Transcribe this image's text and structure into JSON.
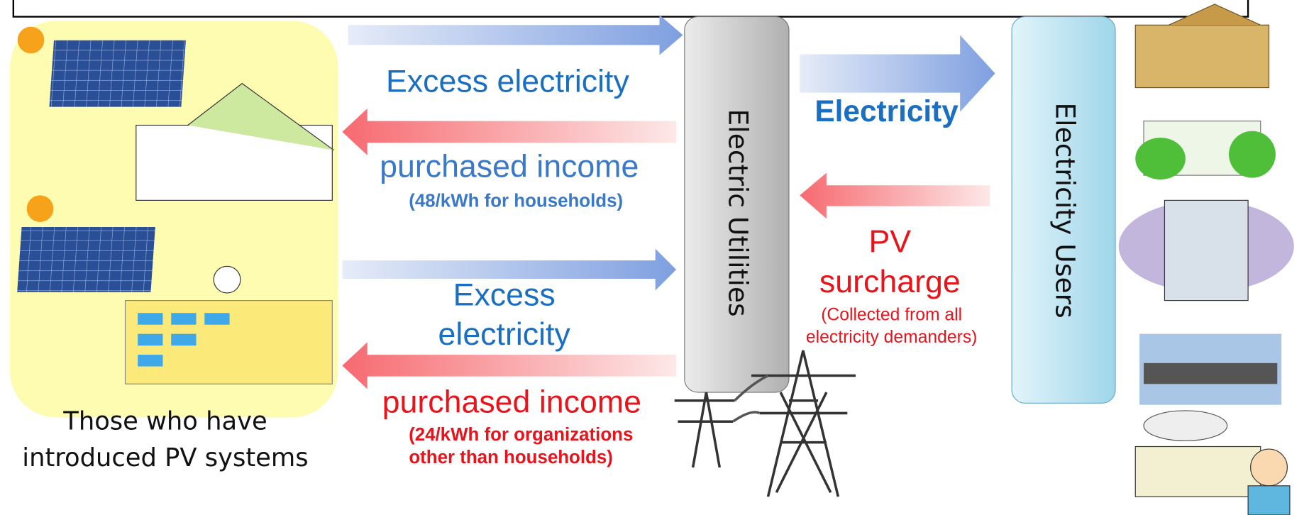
{
  "pv_owners": {
    "label_lines": [
      "Those who have",
      "introduced PV systems"
    ]
  },
  "utilities": {
    "label": "Electric Utilities"
  },
  "users": {
    "label": "Electricity Users"
  },
  "household_flow": {
    "excess": "Excess electricity",
    "income": "purchased income",
    "rate": "(48/kWh for households)"
  },
  "organization_flow": {
    "excess_lines": [
      "Excess",
      "electricity"
    ],
    "income": "purchased income",
    "rate_lines": [
      "(24/kWh for organizations",
      "other than households)"
    ]
  },
  "supply_flow": {
    "label": "Electricity"
  },
  "surcharge_flow": {
    "label_lines": [
      "PV",
      "surcharge"
    ],
    "note_lines": [
      "(Collected from all",
      "electricity demanders)"
    ]
  }
}
